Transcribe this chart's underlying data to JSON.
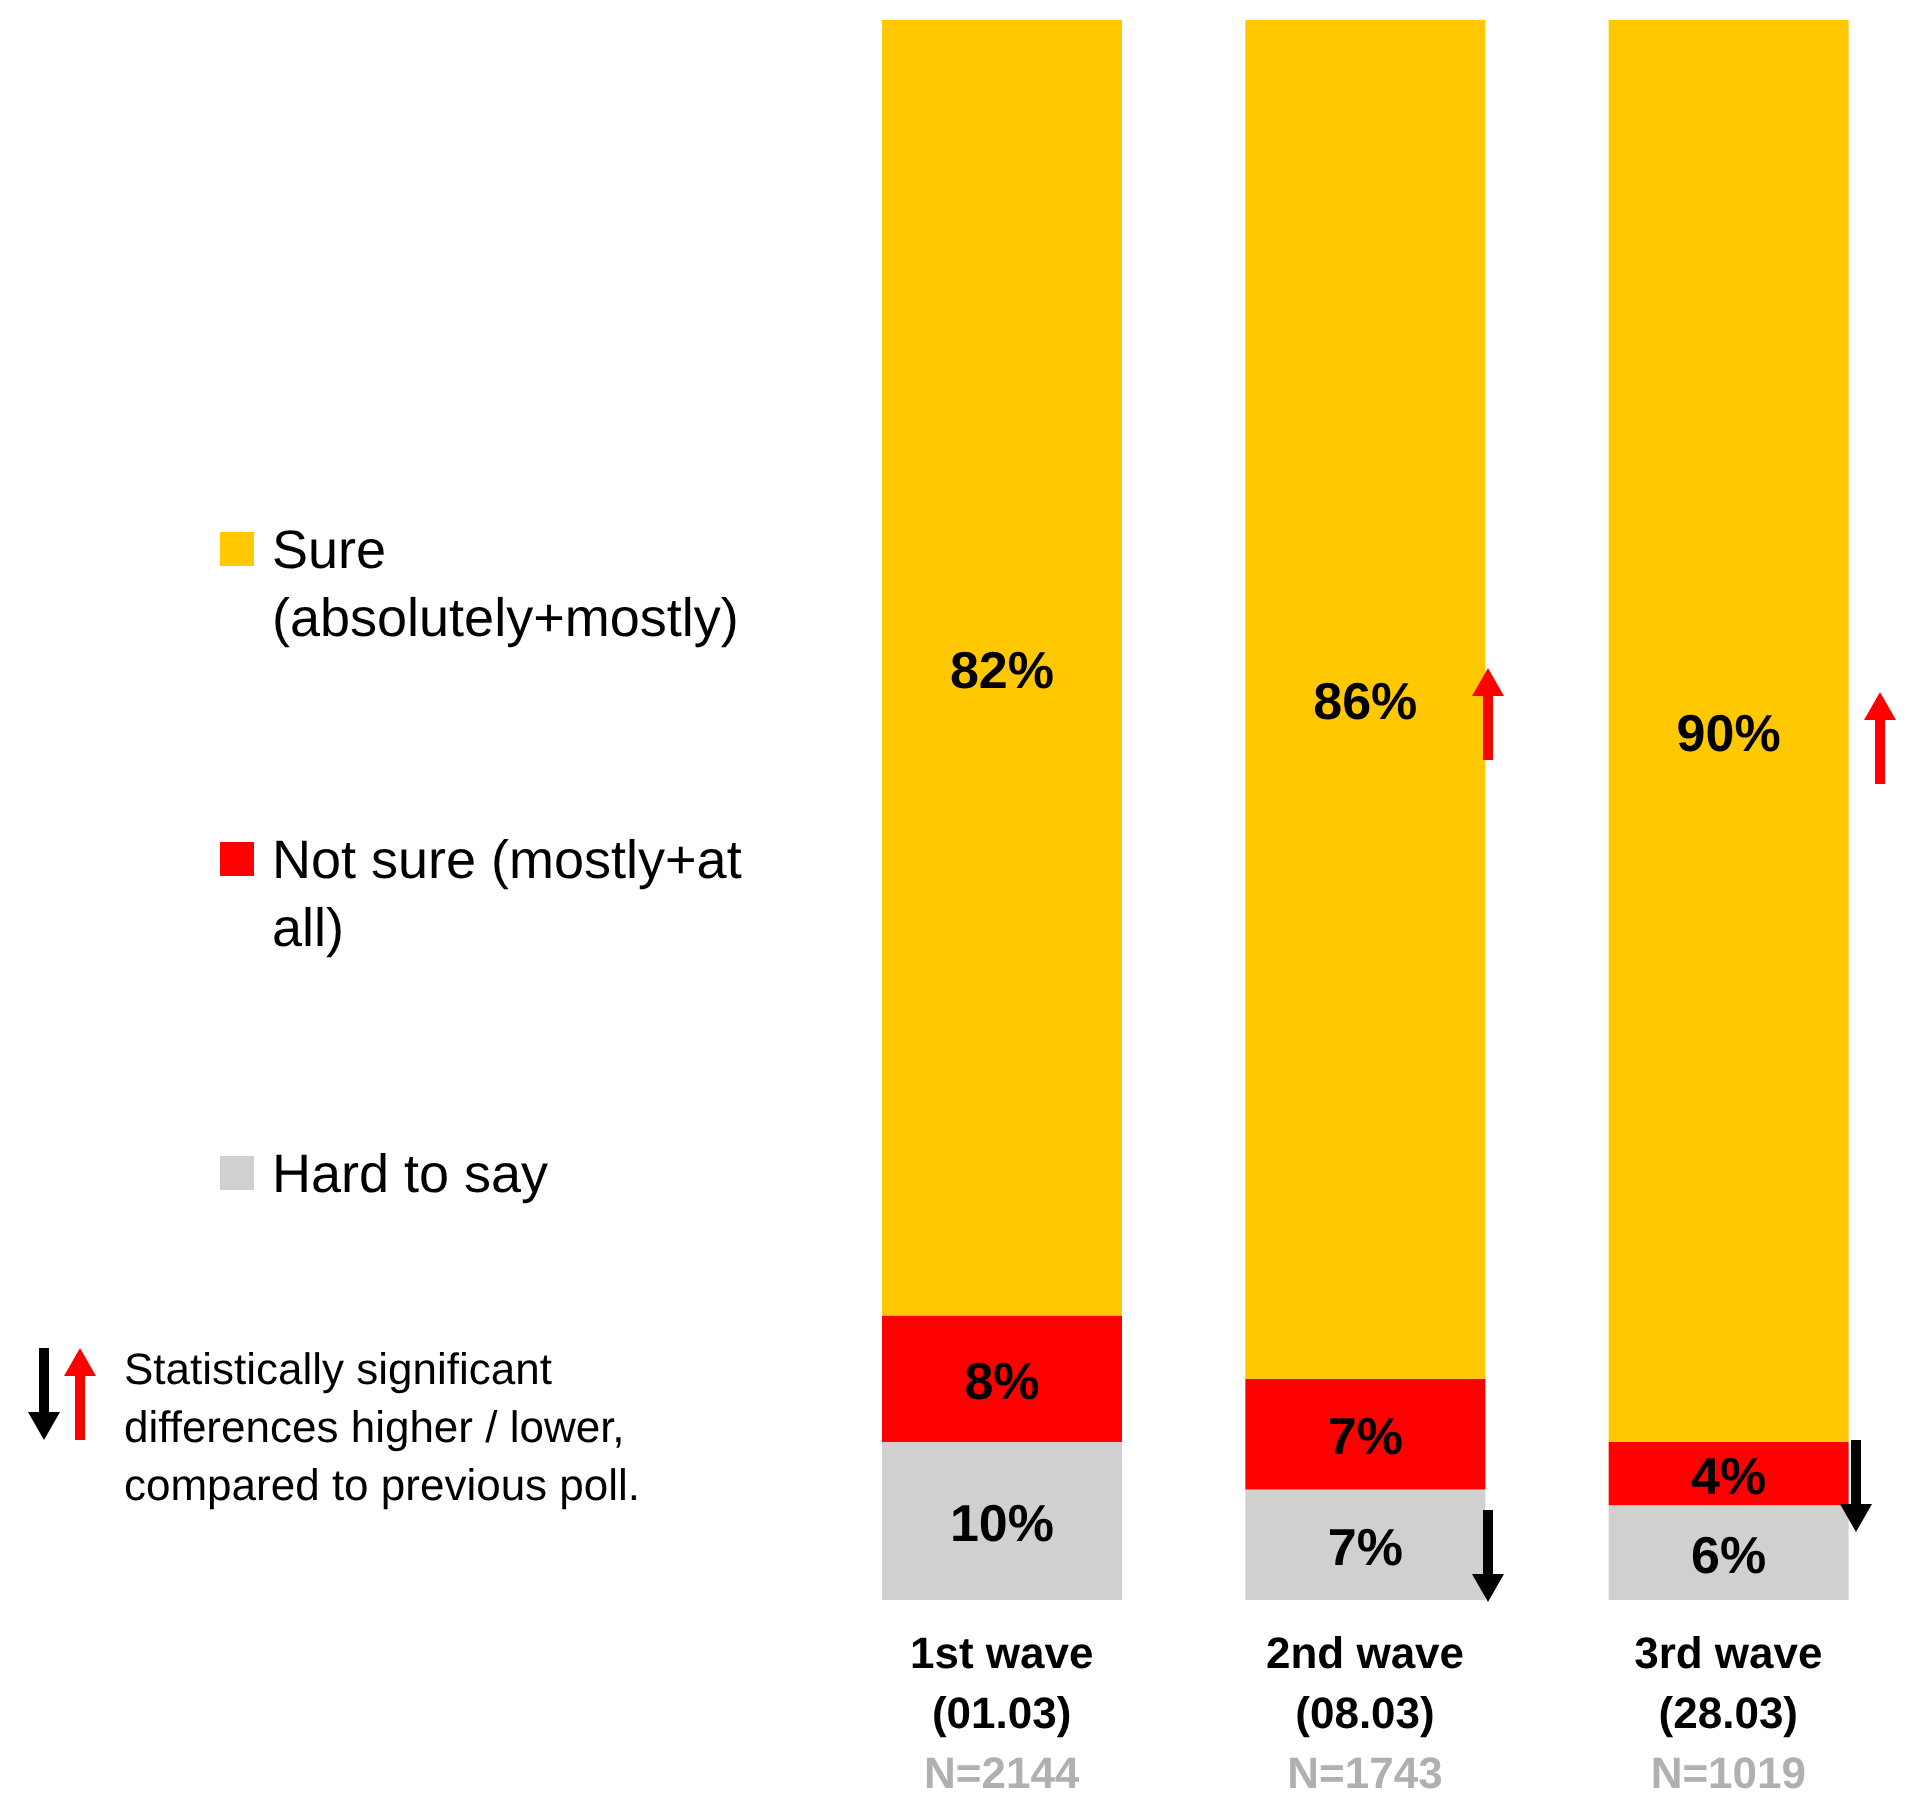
{
  "chart_data": {
    "type": "bar",
    "stacked": true,
    "legend": "left",
    "categories": [
      "1st wave\n(01.03)",
      "2nd wave\n(08.03)",
      "3rd wave\n(28.03)"
    ],
    "series": [
      {
        "name": "Hard to say",
        "color": "#d0d0ce",
        "values": [
          10,
          7,
          6
        ],
        "value_labels": [
          "10%",
          "7%",
          "6%"
        ]
      },
      {
        "name": "Not sure (mostly+at all)",
        "color": "#ff0000",
        "values": [
          8,
          7,
          4
        ],
        "value_labels": [
          "8%",
          "7%",
          "4%"
        ]
      },
      {
        "name": "Sure (absolutely+mostly)",
        "color": "#ffc800",
        "values": [
          82,
          86,
          90
        ],
        "value_labels": [
          "82%",
          "86%",
          "90%"
        ]
      }
    ],
    "annotations": [
      "N=2144",
      "N=1743",
      "N=1019",
      "Statistically significant differences higher / lower, compared to previous poll."
    ]
  }
}
